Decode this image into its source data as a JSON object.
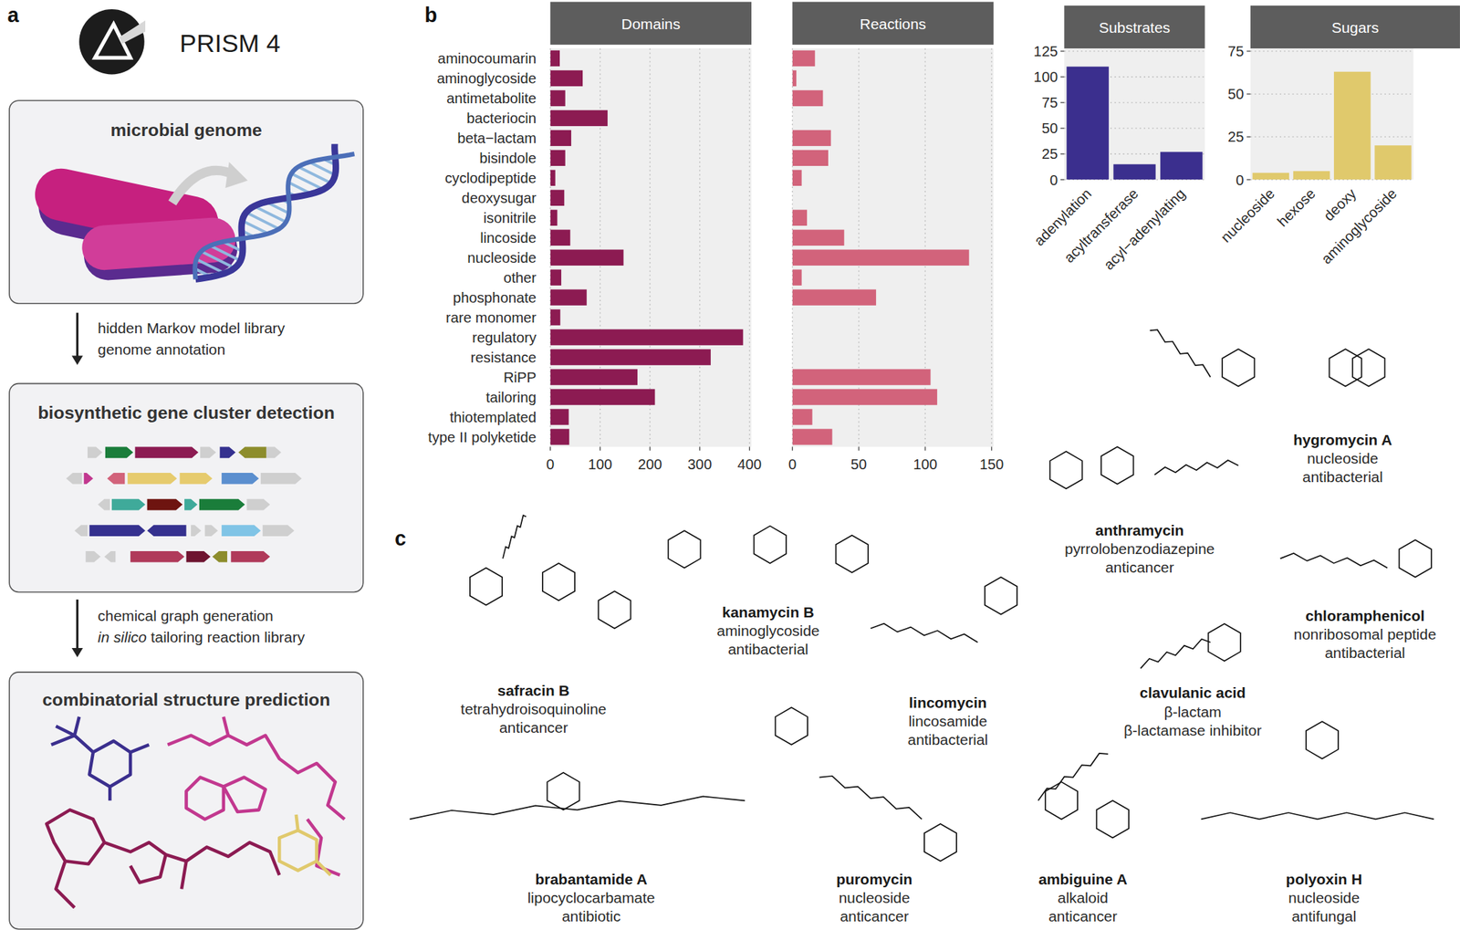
{
  "chart_data": [
    {
      "type": "bar",
      "title": "Domains",
      "orientation": "horizontal",
      "categories": [
        "aminocoumarin",
        "aminoglycoside",
        "antimetabolite",
        "bacteriocin",
        "beta−lactam",
        "bisindole",
        "cyclodipeptide",
        "deoxysugar",
        "isonitrile",
        "lincoside",
        "nucleoside",
        "other",
        "phosphonate",
        "rare monomer",
        "regulatory",
        "resistance",
        "RiPP",
        "tailoring",
        "thiotemplated",
        "type II polyketide"
      ],
      "values": [
        19,
        65,
        30,
        115,
        42,
        30,
        10,
        28,
        14,
        40,
        147,
        22,
        73,
        20,
        387,
        322,
        175,
        210,
        37,
        38
      ],
      "color": "#8c1b52",
      "xlim": [
        0,
        400
      ],
      "xticks": [
        0,
        100,
        200,
        300,
        400
      ],
      "grid": true
    },
    {
      "type": "bar",
      "title": "Reactions",
      "orientation": "horizontal",
      "tick_labels": "x",
      "categories": [
        "aminocoumarin",
        "aminoglycoside",
        "antimetabolite",
        "bacteriocin",
        "beta−lactam",
        "bisindole",
        "cyclodipeptide",
        "deoxysugar",
        "isonitrile",
        "lincoside",
        "nucleoside",
        "other",
        "phosphonate",
        "rare monomer",
        "regulatory",
        "resistance",
        "RiPP",
        "tailoring",
        "thiotemplated",
        "type II polyketide"
      ],
      "values": [
        17,
        3,
        23,
        0,
        29,
        27,
        7,
        0,
        11,
        39,
        133,
        7,
        63,
        0,
        0,
        0,
        104,
        109,
        15,
        30
      ],
      "color": "#d2637b",
      "xlim": [
        0,
        150
      ],
      "xticks": [
        0,
        50,
        100,
        150
      ],
      "grid": true
    },
    {
      "type": "bar",
      "title": "Substrates",
      "categories": [
        "adenylation",
        "acyltransferase",
        "acyl−adenylating"
      ],
      "values": [
        110,
        15,
        27
      ],
      "color": "#3b2f8e",
      "ylim": [
        0,
        125
      ],
      "yticks": [
        0,
        25,
        50,
        75,
        100,
        125
      ],
      "grid": true
    },
    {
      "type": "bar",
      "title": "Sugars",
      "categories": [
        "nucleoside",
        "hexose",
        "deoxy",
        "aminoglycoside"
      ],
      "values": [
        4,
        5,
        63,
        20
      ],
      "color": "#e0c96c",
      "ylim": [
        0,
        75
      ],
      "yticks": [
        0,
        25,
        50,
        75
      ],
      "grid": true
    }
  ],
  "figure": {
    "panel_labels": [
      "a",
      "b",
      "c"
    ],
    "logo": "PRISM 4",
    "steps": [
      "microbial genome",
      "biosynthetic gene cluster detection",
      "combinatorial structure prediction"
    ],
    "arrows": [
      {
        "lines": [
          "hidden Markov model library",
          "genome annotation"
        ]
      },
      {
        "lines": [
          "chemical graph generation",
          "in silico tailoring reaction library"
        ],
        "italic": "in silico"
      }
    ],
    "compounds": [
      {
        "name": "hygromycin A",
        "class": "nucleoside",
        "activity": "antibacterial"
      },
      {
        "name": "anthramycin",
        "class": "pyrrolobenzodiazepine",
        "activity": "anticancer"
      },
      {
        "name": "chloramphenicol",
        "class": "nonribosomal peptide",
        "activity": "antibacterial"
      },
      {
        "name": "kanamycin B",
        "class": "aminoglycoside",
        "activity": "antibacterial"
      },
      {
        "name": "safracin B",
        "class": "tetrahydroisoquinoline",
        "activity": "anticancer"
      },
      {
        "name": "lincomycin",
        "class": "lincosamide",
        "activity": "antibacterial"
      },
      {
        "name": "clavulanic acid",
        "class": "β-lactam",
        "activity": "β-lactamase inhibitor"
      },
      {
        "name": "brabantamide A",
        "class": "lipocyclocarbamate",
        "activity": "antibiotic"
      },
      {
        "name": "puromycin",
        "class": "nucleoside",
        "activity": "anticancer"
      },
      {
        "name": "ambiguine A",
        "class": "alkaloid",
        "activity": "anticancer"
      },
      {
        "name": "polyoxin H",
        "class": "nucleoside",
        "activity": "antifungal"
      }
    ]
  }
}
